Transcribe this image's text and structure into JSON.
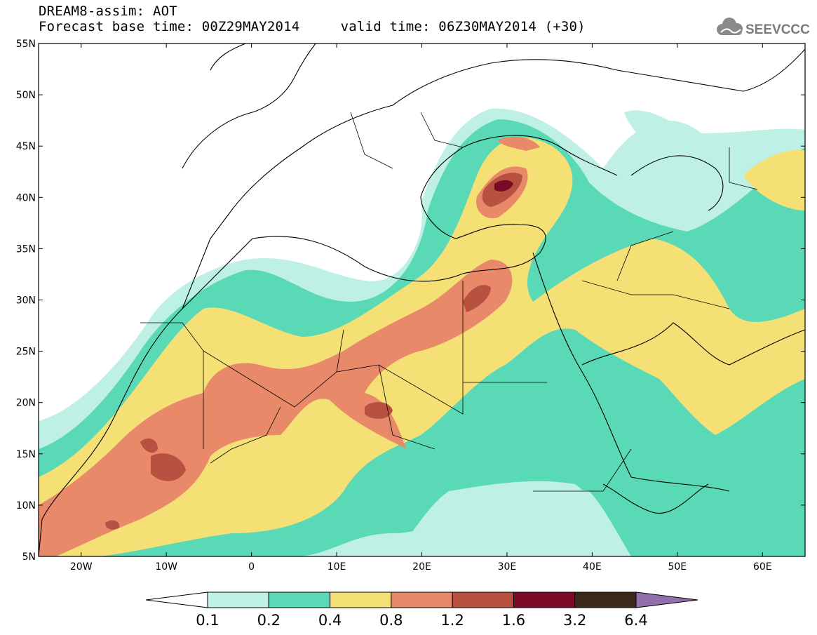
{
  "header": {
    "line1": "DREAM8-assim: AOT",
    "line2": "Forecast base time: 00Z29MAY2014     valid time: 06Z30MAY2014 (+30)",
    "logo_text": "SEEVCCC"
  },
  "map": {
    "lon_range": [
      -25,
      65
    ],
    "lat_range": [
      5,
      55
    ],
    "lat_labels": [
      "55N",
      "50N",
      "45N",
      "40N",
      "35N",
      "30N",
      "25N",
      "20N",
      "15N",
      "10N",
      "5N"
    ],
    "lon_labels": [
      "20W",
      "10W",
      "0",
      "10E",
      "20E",
      "30E",
      "40E",
      "50E",
      "60E"
    ]
  },
  "colorbar": {
    "labels": [
      "0.1",
      "0.2",
      "0.4",
      "0.8",
      "1.2",
      "1.6",
      "3.2",
      "6.4"
    ],
    "colors": [
      "#ffffff",
      "#bff0e6",
      "#5ad9b7",
      "#f5e076",
      "#e8896a",
      "#b8513f",
      "#7a0a26",
      "#3b2a1b",
      "#9370ab"
    ]
  }
}
